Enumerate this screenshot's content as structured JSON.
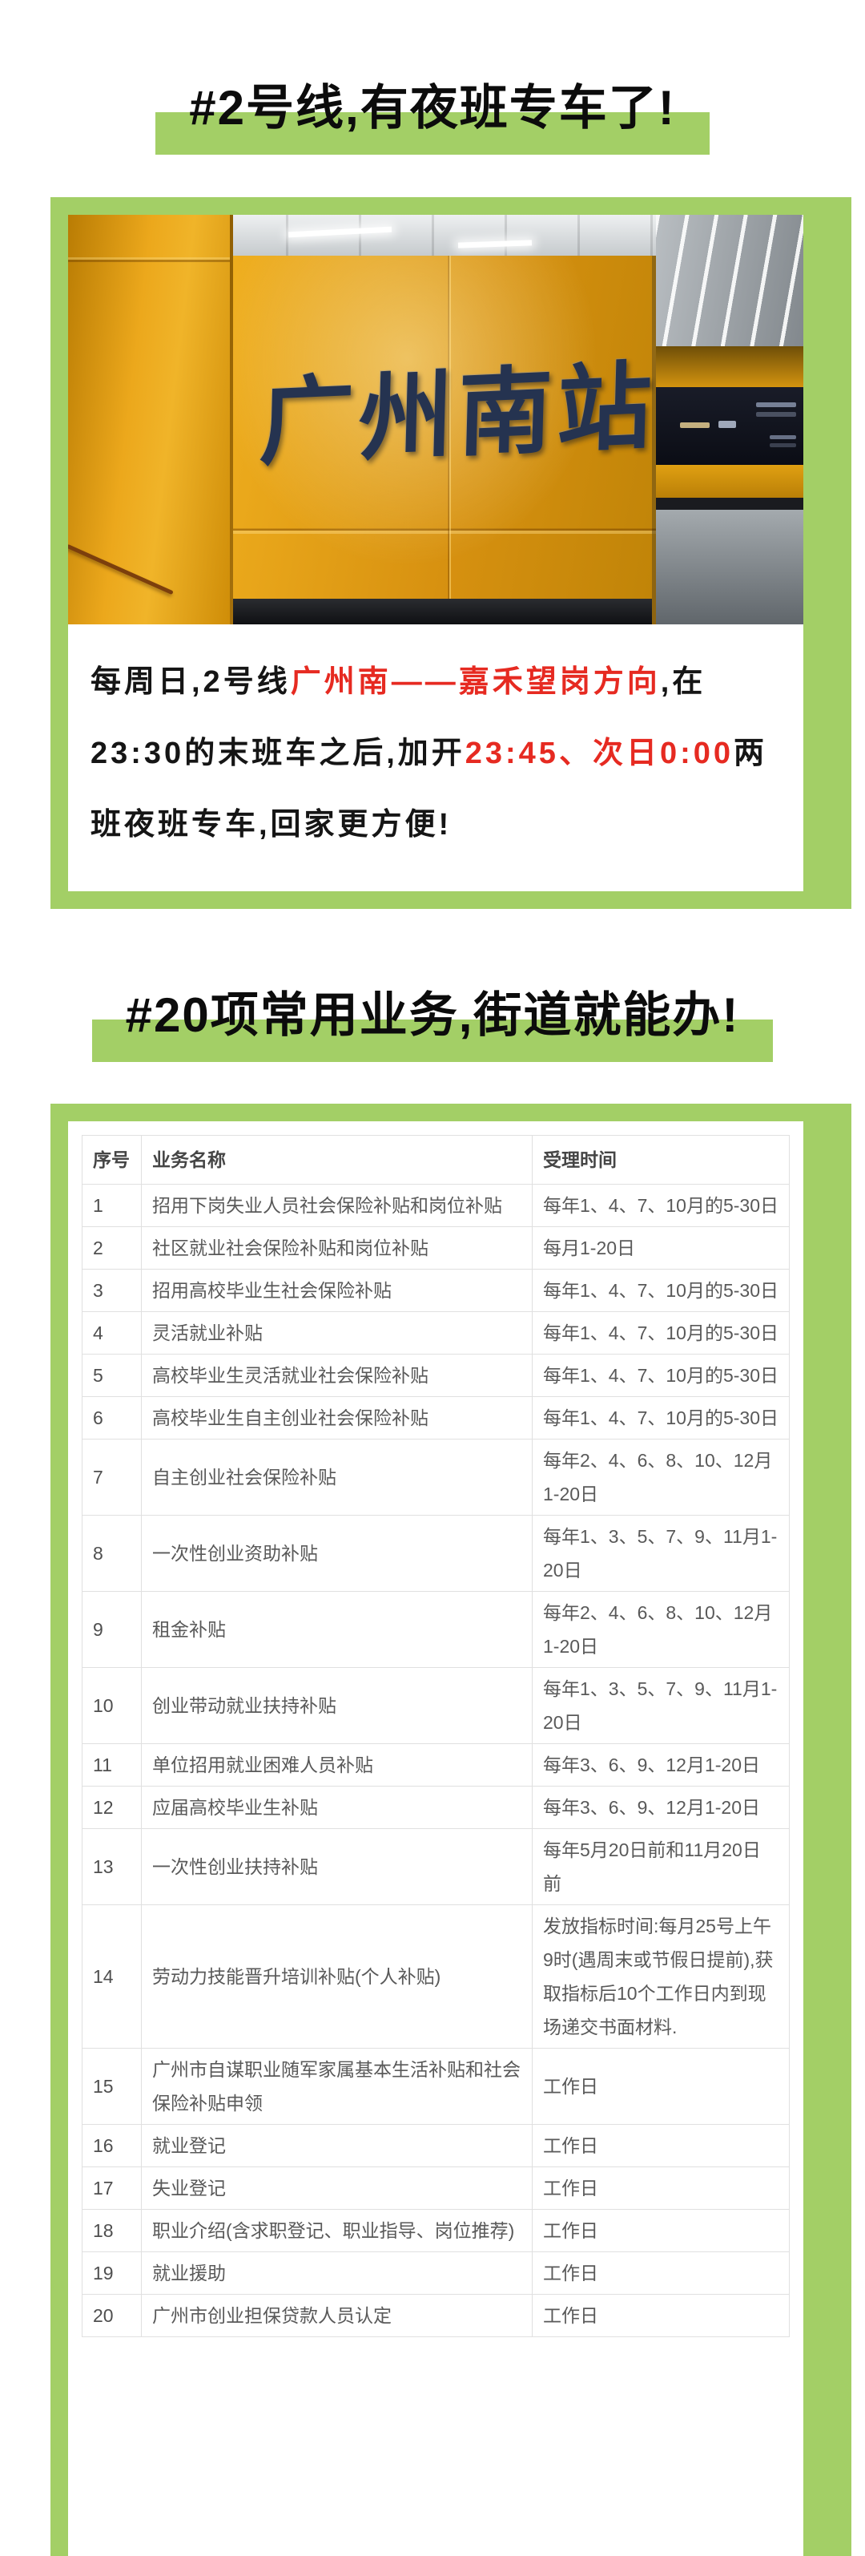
{
  "page": {
    "background": "#ffffff",
    "accent_green": "#a3cf66",
    "accent_red": "#e62a21"
  },
  "section1": {
    "title": "#2号线,有夜班专车了!",
    "photo": {
      "station_name": "广州南站"
    },
    "paragraph_segments": [
      {
        "style": "black",
        "text": "每周日,2号线"
      },
      {
        "style": "red",
        "text": "广州南——嘉禾望岗方向"
      },
      {
        "style": "black",
        "text": ",在23:30的末班车之后,加开"
      },
      {
        "style": "red",
        "text": "23:45、次日0:00"
      },
      {
        "style": "black",
        "text": "两班夜班专车,回家更方便!"
      }
    ]
  },
  "section2": {
    "title": "#20项常用业务,街道就能办!",
    "table": {
      "headers": [
        "序号",
        "业务名称",
        "受理时间"
      ],
      "rows": [
        {
          "no": "1",
          "name": "招用下岗失业人员社会保险补贴和岗位补贴",
          "time": "每年1、4、7、10月的5-30日"
        },
        {
          "no": "2",
          "name": "社区就业社会保险补贴和岗位补贴",
          "time": "每月1-20日"
        },
        {
          "no": "3",
          "name": "招用高校毕业生社会保险补贴",
          "time": "每年1、4、7、10月的5-30日"
        },
        {
          "no": "4",
          "name": "灵活就业补贴",
          "time": "每年1、4、7、10月的5-30日"
        },
        {
          "no": "5",
          "name": "高校毕业生灵活就业社会保险补贴",
          "time": "每年1、4、7、10月的5-30日"
        },
        {
          "no": "6",
          "name": "高校毕业生自主创业社会保险补贴",
          "time": "每年1、4、7、10月的5-30日"
        },
        {
          "no": "7",
          "name": "自主创业社会保险补贴",
          "time": "每年2、4、6、8、10、12月1-20日"
        },
        {
          "no": "8",
          "name": "一次性创业资助补贴",
          "time": "每年1、3、5、7、9、11月1-20日"
        },
        {
          "no": "9",
          "name": "租金补贴",
          "time": "每年2、4、6、8、10、12月1-20日"
        },
        {
          "no": "10",
          "name": "创业带动就业扶持补贴",
          "time": "每年1、3、5、7、9、11月1-20日"
        },
        {
          "no": "11",
          "name": "单位招用就业困难人员补贴",
          "time": "每年3、6、9、12月1-20日"
        },
        {
          "no": "12",
          "name": "应届高校毕业生补贴",
          "time": "每年3、6、9、12月1-20日"
        },
        {
          "no": "13",
          "name": "一次性创业扶持补贴",
          "time": "每年5月20日前和11月20日前"
        },
        {
          "no": "14",
          "name": "劳动力技能晋升培训补贴(个人补贴)",
          "time": "发放指标时间:每月25号上午9时(遇周末或节假日提前),获取指标后10个工作日内到现场递交书面材料."
        },
        {
          "no": "15",
          "name": "广州市自谋职业随军家属基本生活补贴和社会保险补贴申领",
          "time": "工作日"
        },
        {
          "no": "16",
          "name": "就业登记",
          "time": "工作日"
        },
        {
          "no": "17",
          "name": "失业登记",
          "time": "工作日"
        },
        {
          "no": "18",
          "name": "职业介绍(含求职登记、职业指导、岗位推荐)",
          "time": "工作日"
        },
        {
          "no": "19",
          "name": "就业援助",
          "time": "工作日"
        },
        {
          "no": "20",
          "name": "广州市创业担保贷款人员认定",
          "time": "工作日"
        }
      ]
    }
  }
}
